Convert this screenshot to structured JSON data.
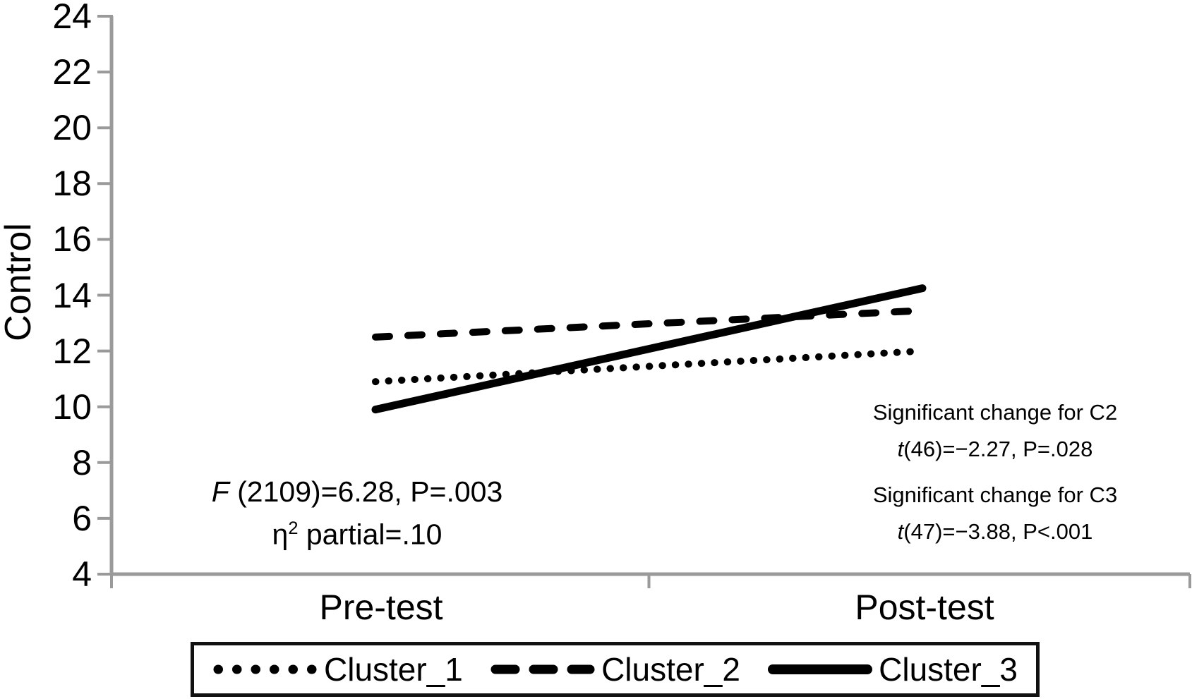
{
  "chart_data": {
    "type": "line",
    "title": "",
    "xlabel": "",
    "ylabel": "Control",
    "categories": [
      "Pre-test",
      "Post-test"
    ],
    "ylim": [
      4,
      24
    ],
    "yticks": [
      4,
      6,
      8,
      10,
      12,
      14,
      16,
      18,
      20,
      22,
      24
    ],
    "grid": false,
    "legend_position": "bottom",
    "series": [
      {
        "name": "Cluster_1",
        "style": "dotted",
        "values": [
          10.9,
          12.0
        ]
      },
      {
        "name": "Cluster_2",
        "style": "dashed",
        "values": [
          12.5,
          13.45
        ]
      },
      {
        "name": "Cluster_3",
        "style": "solid",
        "values": [
          9.9,
          14.25
        ]
      }
    ]
  },
  "annotations": {
    "left": {
      "line1_italic": "F",
      "line1_rest": " (2109)=6.28, P=.003",
      "line2_symbol": "η",
      "line2_sup": "2",
      "line2_rest": " partial=.10"
    },
    "right": {
      "line1": "Significant change for C2",
      "line2_italic": "t",
      "line2_rest": "(46)=−2.27, P=.028",
      "line3": "Significant change for C3",
      "line4_italic": "t",
      "line4_rest": "(47)=−3.88, P<.001"
    }
  },
  "colors": {
    "line": "#000000",
    "axis": "#9a9a9a",
    "text": "#000000",
    "background": "#ffffff"
  }
}
